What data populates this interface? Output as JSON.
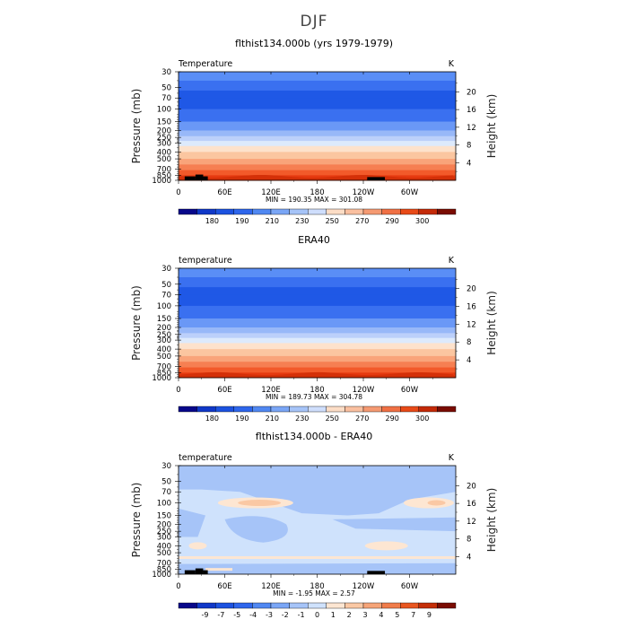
{
  "title": "DJF",
  "panels": [
    {
      "title": "flthist134.000b (yrs 1979-1979)",
      "corner_left": "Temperature",
      "corner_right": "K",
      "stats": "MIN = 190.35   MAX = 301.08",
      "colorbar": [
        "180",
        "190",
        "210",
        "230",
        "250",
        "270",
        "290",
        "300"
      ]
    },
    {
      "title": "ERA40",
      "corner_left": "temperature",
      "corner_right": "K",
      "stats": "MIN = 189.73   MAX = 304.78",
      "colorbar": [
        "180",
        "190",
        "210",
        "230",
        "250",
        "270",
        "290",
        "300"
      ]
    },
    {
      "title": "flthist134.000b - ERA40",
      "corner_left": "temperature",
      "corner_right": "K",
      "stats": "MIN =   -1.95   MAX =    2.57",
      "colorbar": [
        "-9",
        "-7",
        "-5",
        "-4",
        "-3",
        "-2",
        "-1",
        "0",
        "1",
        "2",
        "3",
        "4",
        "5",
        "7",
        "9"
      ]
    }
  ],
  "chart_data": [
    {
      "type": "heatmap",
      "title": "flthist134.000b (yrs 1979-1979)",
      "xlabel": "",
      "ylabel": "Pressure (mb)",
      "y2label": "Height (km)",
      "xticks": [
        "0",
        "60E",
        "120E",
        "180",
        "120W",
        "60W"
      ],
      "yticks": [
        "30",
        "50",
        "70",
        "100",
        "150",
        "200",
        "250",
        "300",
        "400",
        "500",
        "700",
        "850",
        "1000"
      ],
      "y2ticks": [
        "4",
        "8",
        "12",
        "16",
        "20"
      ],
      "units": "K",
      "min": 190.35,
      "max": 301.08,
      "colorbar_levels": [
        180,
        190,
        200,
        210,
        220,
        230,
        240,
        250,
        260,
        270,
        280,
        290,
        300
      ]
    },
    {
      "type": "heatmap",
      "title": "ERA40",
      "xlabel": "",
      "ylabel": "Pressure (mb)",
      "y2label": "Height (km)",
      "xticks": [
        "0",
        "60E",
        "120E",
        "180",
        "120W",
        "60W"
      ],
      "yticks": [
        "30",
        "50",
        "70",
        "100",
        "150",
        "200",
        "250",
        "300",
        "400",
        "500",
        "700",
        "850",
        "1000"
      ],
      "y2ticks": [
        "4",
        "8",
        "12",
        "16",
        "20"
      ],
      "units": "K",
      "min": 189.73,
      "max": 304.78,
      "colorbar_levels": [
        180,
        190,
        200,
        210,
        220,
        230,
        240,
        250,
        260,
        270,
        280,
        290,
        300
      ]
    },
    {
      "type": "heatmap",
      "title": "flthist134.000b - ERA40",
      "xlabel": "",
      "ylabel": "Pressure (mb)",
      "y2label": "Height (km)",
      "xticks": [
        "0",
        "60E",
        "120E",
        "180",
        "120W",
        "60W"
      ],
      "yticks": [
        "30",
        "50",
        "70",
        "100",
        "150",
        "200",
        "250",
        "300",
        "400",
        "500",
        "700",
        "850",
        "1000"
      ],
      "y2ticks": [
        "4",
        "8",
        "12",
        "16",
        "20"
      ],
      "units": "K",
      "min": -1.95,
      "max": 2.57,
      "colorbar_levels": [
        -9,
        -7,
        -5,
        -4,
        -3,
        -2,
        -1,
        0,
        1,
        2,
        3,
        4,
        5,
        7,
        9
      ]
    }
  ],
  "axis": {
    "ylabel": "Pressure (mb)",
    "y2label": "Height (km)",
    "xticks": [
      "0",
      "60E",
      "120E",
      "180",
      "120W",
      "60W"
    ],
    "yticks": [
      "30",
      "50",
      "70",
      "100",
      "150",
      "200",
      "250",
      "300",
      "400",
      "500",
      "700",
      "850",
      "1000"
    ],
    "y2ticks": [
      "4",
      "8",
      "12",
      "16",
      "20"
    ]
  },
  "colors": {
    "temp_bands_top_to_bottom": [
      "#5a8ef6",
      "#3a70f0",
      "#1f58e6",
      "#1f58e6",
      "#3a70f0",
      "#6a98f6",
      "#98b8f8",
      "#bcd0fa",
      "#ddeafc",
      "#fde2cc",
      "#fbc6a0",
      "#f9a47a",
      "#f67f52",
      "#f25a2a",
      "#e63a10"
    ],
    "colorbar_temp": [
      "#08088a",
      "#1038c8",
      "#1c52e0",
      "#2e66ec",
      "#5088f2",
      "#7aa6f6",
      "#a6c4f8",
      "#cfdefc",
      "#fcddc6",
      "#fac0a0",
      "#f59a72",
      "#f07044",
      "#e84a18",
      "#c42a08",
      "#7a0c02"
    ],
    "colorbar_diff": [
      "#08088a",
      "#1038c8",
      "#1c52e0",
      "#2e66ec",
      "#5088f2",
      "#7aa6f6",
      "#a6c4f8",
      "#cfe2fc",
      "#fde6d2",
      "#fac8a4",
      "#f6a478",
      "#f07c4a",
      "#e85620",
      "#c42e08",
      "#7a0c02"
    ],
    "diff_background": "#cfe2fc",
    "diff_positive": "#fde6d2",
    "diff_positive2": "#fac8a4",
    "diff_negative": "#a6c4f8"
  }
}
